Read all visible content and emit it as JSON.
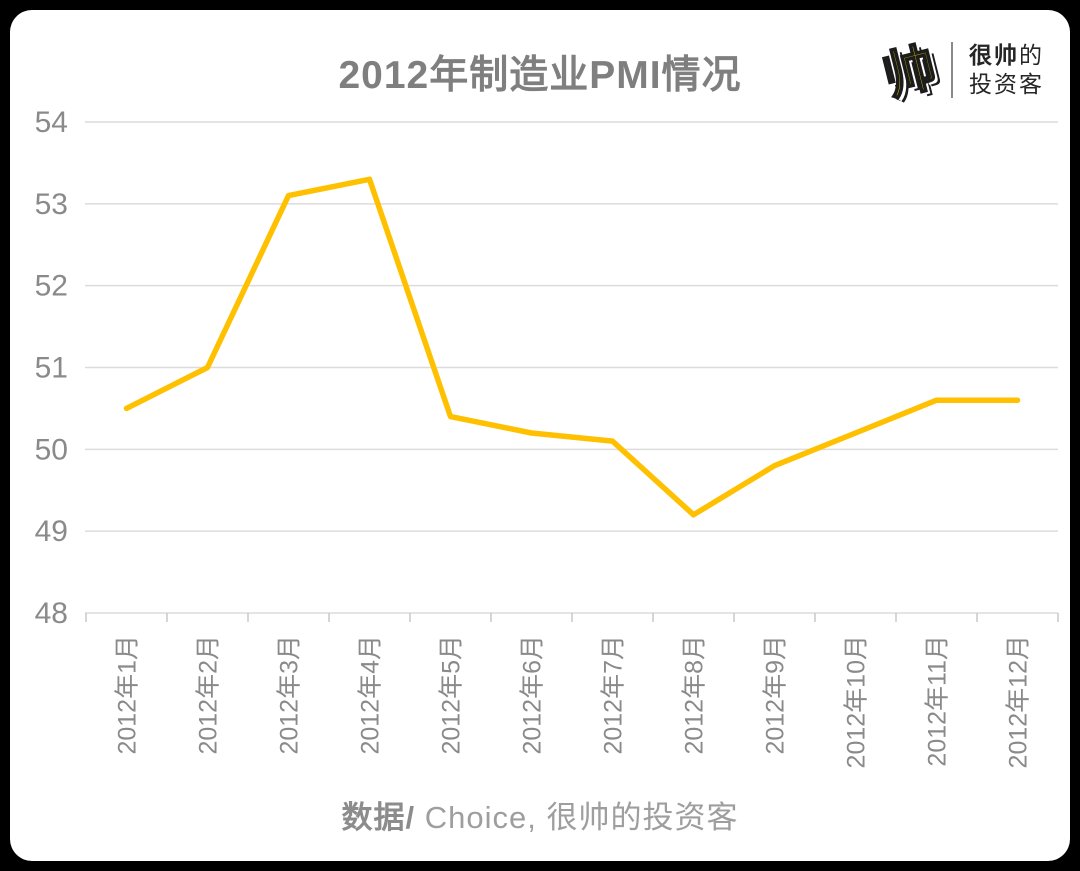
{
  "title": "2012年制造业PMI情况",
  "brand": {
    "glyph": "帅",
    "name_line1_bold": "很帅",
    "name_line1_rest": "的",
    "name_line2": "投资客"
  },
  "source": {
    "prefix": "数据/",
    "text": " Choice, 很帅的投资客"
  },
  "colors": {
    "line": "#FFC000",
    "brand_yellow": "#F6DF00",
    "grid": "#DCDCDC",
    "tick": "#C8C8C8",
    "title_gray": "#7F7F7F",
    "axis_label_gray": "#8A8A8A"
  },
  "chart_data": {
    "type": "line",
    "title": "2012年制造业PMI情况",
    "categories": [
      "2012年1月",
      "2012年2月",
      "2012年3月",
      "2012年4月",
      "2012年5月",
      "2012年6月",
      "2012年7月",
      "2012年8月",
      "2012年9月",
      "2012年10月",
      "2012年11月",
      "2012年12月"
    ],
    "values": [
      50.5,
      51.0,
      53.1,
      53.3,
      50.4,
      50.2,
      50.1,
      49.2,
      49.8,
      50.2,
      50.6,
      50.6
    ],
    "xlabel": "",
    "ylabel": "",
    "ylim": [
      48,
      54
    ],
    "yticks": [
      48,
      49,
      50,
      51,
      52,
      53,
      54
    ],
    "grid": true,
    "legend": "none",
    "line_color": "#FFC000",
    "source_note": "数据/ Choice, 很帅的投资客"
  }
}
